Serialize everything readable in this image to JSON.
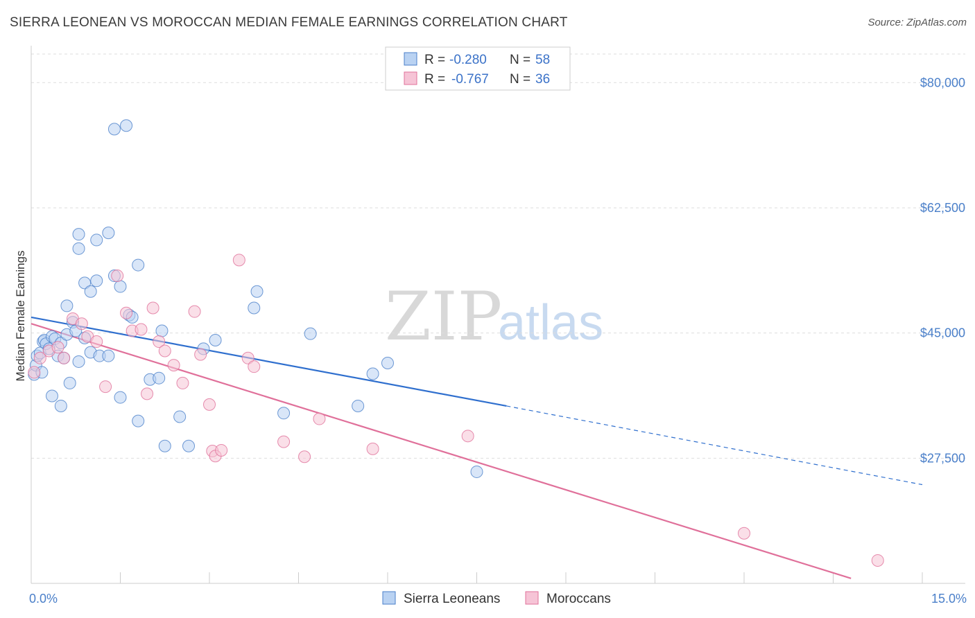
{
  "title": "SIERRA LEONEAN VS MOROCCAN MEDIAN FEMALE EARNINGS CORRELATION CHART",
  "source": "Source: ZipAtlas.com",
  "colors": {
    "blue": "#4a7fc9",
    "blue_fill": "#b9d2f2",
    "blue_line": "#2f6fce",
    "pink": "#e0709a",
    "pink_fill": "#f6c4d6",
    "grid": "#dddddd"
  },
  "legend": {
    "rows": [
      {
        "r_label": "R =",
        "r_value": "-0.280",
        "n_label": "N =",
        "n_value": "58"
      },
      {
        "r_label": "R =",
        "r_value": "-0.767",
        "n_label": "N =",
        "n_value": "36"
      }
    ]
  },
  "chart_data": {
    "type": "scatter",
    "title": "SIERRA LEONEAN VS MOROCCAN MEDIAN FEMALE EARNINGS CORRELATION CHART",
    "xlabel": "",
    "ylabel": "Median Female Earnings",
    "xlim": [
      0,
      15
    ],
    "ylim": [
      10000,
      84000
    ],
    "x_tick_labels": [
      "0.0%",
      "15.0%"
    ],
    "y_ticks": [
      27500,
      45000,
      62500,
      80000
    ],
    "y_tick_labels": [
      "$27,500",
      "$45,000",
      "$62,500",
      "$80,000"
    ],
    "grid": true,
    "legend_position": "top-center",
    "series": [
      {
        "name": "Sierra Leoneans",
        "color": "#4a7fc9",
        "trend": {
          "x0": 0.0,
          "y0": 47200,
          "x1": 8.0,
          "y1": 34800,
          "dash_x1": 15.0,
          "dash_y1": 23800
        },
        "points": [
          [
            0.05,
            39200
          ],
          [
            0.08,
            40500
          ],
          [
            0.1,
            41800
          ],
          [
            0.15,
            42200
          ],
          [
            0.18,
            39500
          ],
          [
            0.2,
            43800
          ],
          [
            0.22,
            44000
          ],
          [
            0.25,
            43500
          ],
          [
            0.3,
            42800
          ],
          [
            0.35,
            44500
          ],
          [
            0.4,
            44200
          ],
          [
            0.45,
            41800
          ],
          [
            0.5,
            43600
          ],
          [
            0.55,
            41500
          ],
          [
            0.6,
            44800
          ],
          [
            0.7,
            46500
          ],
          [
            0.75,
            45300
          ],
          [
            0.8,
            41000
          ],
          [
            0.9,
            44300
          ],
          [
            1.0,
            42300
          ],
          [
            1.15,
            41800
          ],
          [
            1.3,
            41800
          ],
          [
            0.35,
            36200
          ],
          [
            0.5,
            34800
          ],
          [
            0.65,
            38000
          ],
          [
            0.6,
            48800
          ],
          [
            0.9,
            52000
          ],
          [
            1.0,
            50800
          ],
          [
            1.1,
            52300
          ],
          [
            0.8,
            56800
          ],
          [
            0.8,
            58800
          ],
          [
            1.1,
            58000
          ],
          [
            1.3,
            59000
          ],
          [
            1.4,
            53000
          ],
          [
            1.5,
            51500
          ],
          [
            1.65,
            47500
          ],
          [
            1.8,
            54500
          ],
          [
            1.5,
            36000
          ],
          [
            1.7,
            47200
          ],
          [
            2.0,
            38500
          ],
          [
            2.15,
            38700
          ],
          [
            2.2,
            45300
          ],
          [
            1.8,
            32700
          ],
          [
            2.25,
            29200
          ],
          [
            2.5,
            33300
          ],
          [
            2.65,
            29200
          ],
          [
            2.9,
            42800
          ],
          [
            3.1,
            44000
          ],
          [
            3.75,
            48500
          ],
          [
            3.8,
            50800
          ],
          [
            4.25,
            33800
          ],
          [
            4.7,
            44900
          ],
          [
            5.5,
            34800
          ],
          [
            5.75,
            39300
          ],
          [
            6.0,
            40800
          ],
          [
            7.5,
            25600
          ],
          [
            1.4,
            73500
          ],
          [
            1.6,
            74000
          ]
        ]
      },
      {
        "name": "Moroccans",
        "color": "#e0709a",
        "trend": {
          "x0": 0.0,
          "y0": 46300,
          "x1": 15.0,
          "y1": 7600
        },
        "points": [
          [
            0.05,
            39500
          ],
          [
            0.15,
            41500
          ],
          [
            0.3,
            42500
          ],
          [
            0.45,
            43000
          ],
          [
            0.55,
            41500
          ],
          [
            0.7,
            47000
          ],
          [
            0.85,
            46300
          ],
          [
            0.95,
            44500
          ],
          [
            1.1,
            43800
          ],
          [
            1.25,
            37500
          ],
          [
            1.45,
            53000
          ],
          [
            1.6,
            47800
          ],
          [
            1.7,
            45300
          ],
          [
            1.85,
            45500
          ],
          [
            1.95,
            36500
          ],
          [
            2.05,
            48500
          ],
          [
            2.15,
            43800
          ],
          [
            2.25,
            42500
          ],
          [
            2.4,
            40500
          ],
          [
            2.55,
            38000
          ],
          [
            2.75,
            48000
          ],
          [
            2.85,
            42000
          ],
          [
            3.0,
            35000
          ],
          [
            3.05,
            28500
          ],
          [
            3.1,
            27800
          ],
          [
            3.2,
            28600
          ],
          [
            3.5,
            55200
          ],
          [
            3.65,
            41500
          ],
          [
            3.75,
            40300
          ],
          [
            4.25,
            29800
          ],
          [
            4.6,
            27700
          ],
          [
            4.85,
            33000
          ],
          [
            5.75,
            28800
          ],
          [
            7.35,
            30600
          ],
          [
            12.0,
            17000
          ],
          [
            14.25,
            13200
          ]
        ]
      }
    ]
  }
}
